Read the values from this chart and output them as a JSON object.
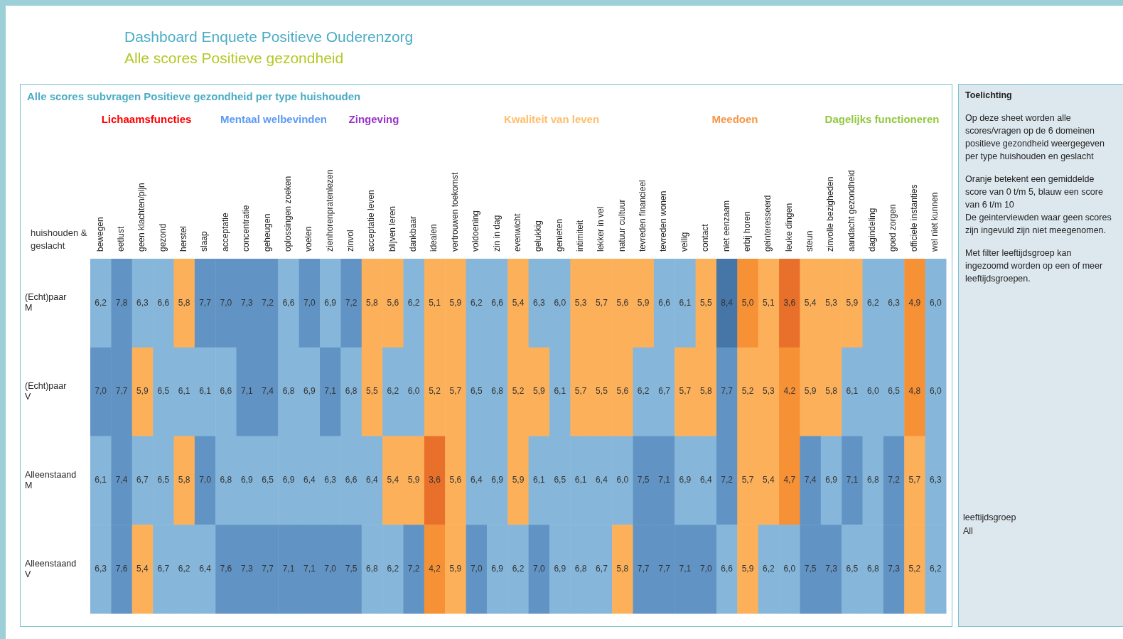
{
  "chart_data": {
    "type": "heatmap",
    "title": "Dashboard Enquete Positieve Ouderenzorg",
    "subtitle": "Alle scores Positieve gezondheid",
    "ylabel": "huishouden & geslacht",
    "categories": [
      "bewegen",
      "eetlust",
      "geen klachten/pijn",
      "gezond",
      "herstel",
      "slaap",
      "acceptatie",
      "concentratie",
      "geheugen",
      "oplossingen zoeken",
      "voelen",
      "zienhorenpratenlezen",
      "zinvol",
      "acceptatie leven",
      "blijven leren",
      "dankbaar",
      "idealen",
      "vertrouwen toekomst",
      "voldoening",
      "zin in dag",
      "evenwicht",
      "gelukkig",
      "genieten",
      "intimiteit",
      "lekker in vel",
      "natuur cultuur",
      "tevreden financieel",
      "tevreden wonen",
      "veilig",
      "contact",
      "niet eenzaam",
      "erbij horen",
      "geinteresseerd",
      "leuke dingen",
      "steun",
      "zinvolle bezigheden",
      "aandacht gezondheid",
      "dagindeling",
      "goed zorgen",
      "officiele instanties",
      "wel niet kunnen"
    ],
    "y_categories": [
      "(Echt)paar M",
      "(Echt)paar V",
      "Alleenstaand M",
      "Alleenstaand V"
    ],
    "cells": [
      [
        6.2,
        7.8,
        6.3,
        6.6,
        5.8,
        7.7,
        7.0,
        7.3,
        7.2,
        6.6,
        7.0,
        6.9,
        7.2,
        5.8,
        5.6,
        6.2,
        5.1,
        5.9,
        6.2,
        6.6,
        5.4,
        6.3,
        6.0,
        5.3,
        5.7,
        5.6,
        5.9,
        6.6,
        6.1,
        5.5,
        8.4,
        5.0,
        5.1,
        3.6,
        5.4,
        5.3,
        5.9,
        6.2,
        6.3,
        4.9,
        6.0
      ],
      [
        7.0,
        7.7,
        5.9,
        6.5,
        6.1,
        6.1,
        6.6,
        7.1,
        7.4,
        6.8,
        6.9,
        7.1,
        6.8,
        5.5,
        6.2,
        6.0,
        5.2,
        5.7,
        6.5,
        6.8,
        5.2,
        5.9,
        6.1,
        5.7,
        5.5,
        5.6,
        6.2,
        6.7,
        5.7,
        5.8,
        7.7,
        5.2,
        5.3,
        4.2,
        5.9,
        5.8,
        6.1,
        6.0,
        6.5,
        4.8,
        6.0
      ],
      [
        6.1,
        7.4,
        6.7,
        6.5,
        5.8,
        7.0,
        6.8,
        6.9,
        6.5,
        6.9,
        6.4,
        6.3,
        6.6,
        6.4,
        5.4,
        5.9,
        3.6,
        5.6,
        6.4,
        6.9,
        5.9,
        6.1,
        6.5,
        6.1,
        6.4,
        6.0,
        7.5,
        7.1,
        6.9,
        6.4,
        7.2,
        5.7,
        5.4,
        4.7,
        7.4,
        6.9,
        7.1,
        6.8,
        7.2,
        5.7,
        6.3
      ],
      [
        6.3,
        7.6,
        5.4,
        6.7,
        6.2,
        6.4,
        7.6,
        7.3,
        7.7,
        7.1,
        7.1,
        7.0,
        7.5,
        6.8,
        6.2,
        7.2,
        4.2,
        5.9,
        7.0,
        6.9,
        6.2,
        7.0,
        6.9,
        6.8,
        6.7,
        5.8,
        7.7,
        7.7,
        7.1,
        7.0,
        6.6,
        5.9,
        6.2,
        6.0,
        7.5,
        7.3,
        6.5,
        6.8,
        7.3,
        5.2,
        6.2
      ]
    ],
    "cell_labels": [
      [
        "6,2",
        "7,8",
        "6,3",
        "6,6",
        "5,8",
        "7,7",
        "7,0",
        "7,3",
        "7,2",
        "6,6",
        "7,0",
        "6,9",
        "7,2",
        "5,8",
        "5,6",
        "6,2",
        "5,1",
        "5,9",
        "6,2",
        "6,6",
        "5,4",
        "6,3",
        "6,0",
        "5,3",
        "5,7",
        "5,6",
        "5,9",
        "6,6",
        "6,1",
        "5,5",
        "8,4",
        "5,0",
        "5,1",
        "3,6",
        "5,4",
        "5,3",
        "5,9",
        "6,2",
        "6,3",
        "4,9",
        "6,0"
      ],
      [
        "7,0",
        "7,7",
        "5,9",
        "6,5",
        "6,1",
        "6,1",
        "6,6",
        "7,1",
        "7,4",
        "6,8",
        "6,9",
        "7,1",
        "6,8",
        "5,5",
        "6,2",
        "6,0",
        "5,2",
        "5,7",
        "6,5",
        "6,8",
        "5,2",
        "5,9",
        "6,1",
        "5,7",
        "5,5",
        "5,6",
        "6,2",
        "6,7",
        "5,7",
        "5,8",
        "7,7",
        "5,2",
        "5,3",
        "4,2",
        "5,9",
        "5,8",
        "6,1",
        "6,0",
        "6,5",
        "4,8",
        "6,0"
      ],
      [
        "6,1",
        "7,4",
        "6,7",
        "6,5",
        "5,8",
        "7,0",
        "6,8",
        "6,9",
        "6,5",
        "6,9",
        "6,4",
        "6,3",
        "6,6",
        "6,4",
        "5,4",
        "5,9",
        "3,6",
        "5,6",
        "6,4",
        "6,9",
        "5,9",
        "6,1",
        "6,5",
        "6,1",
        "6,4",
        "6,0",
        "7,5",
        "7,1",
        "6,9",
        "6,4",
        "7,2",
        "5,7",
        "5,4",
        "4,7",
        "7,4",
        "6,9",
        "7,1",
        "6,8",
        "7,2",
        "5,7",
        "6,3"
      ],
      [
        "6,3",
        "7,6",
        "5,4",
        "6,7",
        "6,2",
        "6,4",
        "7,6",
        "7,3",
        "7,7",
        "7,1",
        "7,1",
        "7,0",
        "7,5",
        "6,8",
        "6,2",
        "7,2",
        "4,2",
        "5,9",
        "7,0",
        "6,9",
        "6,2",
        "7,0",
        "6,9",
        "6,8",
        "6,7",
        "5,8",
        "7,7",
        "7,7",
        "7,1",
        "7,0",
        "6,6",
        "5,9",
        "6,2",
        "6,0",
        "7,5",
        "7,3",
        "6,5",
        "6,8",
        "7,3",
        "5,2",
        "6,2"
      ]
    ],
    "annotations": [
      "Alle scores subvragen Positieve gezondheid  per type huishouden",
      "Lichaamsfuncties",
      "Mentaal welbevinden",
      "Zingeving",
      "Kwaliteit van leven",
      "Meedoen",
      "Dagelijks functioneren",
      "Toelichting",
      "Op deze sheet worden alle scores/vragen op de 6 domeinen positieve gezondheid weergegeven per   type huishouden en geslacht",
      "Oranje betekent een gemiddelde score van 0  t/m 5, blauw een score van 6 t/m 10",
      "De geinterviewden waar geen scores zijn ingevuld zijn niet meegenomen.",
      "Met filter leeftijdsgroep kan ingezoomd worden op een of meer leeftijdsgroepen.",
      "leeftijdsgroep",
      "All"
    ]
  }
}
